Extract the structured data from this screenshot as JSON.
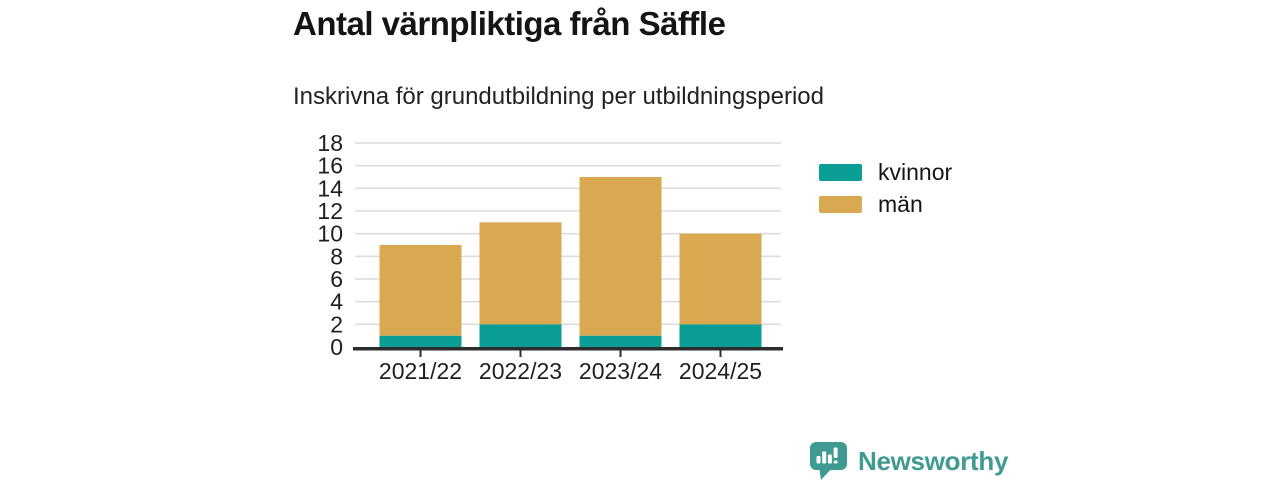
{
  "chart_data": {
    "type": "bar",
    "stacked": true,
    "title": "Antal värnpliktiga från Säffle",
    "subtitle": "Inskrivna för grundutbildning per utbildningsperiod",
    "categories": [
      "2021/22",
      "2022/23",
      "2023/24",
      "2024/25"
    ],
    "series": [
      {
        "name": "kvinnor",
        "color": "#0a9e96",
        "values": [
          1,
          2,
          1,
          2
        ]
      },
      {
        "name": "män",
        "color": "#d9a951",
        "values": [
          8,
          9,
          14,
          8
        ]
      }
    ],
    "totals": [
      9,
      11,
      15,
      10
    ],
    "xlabel": "",
    "ylabel": "",
    "ylim": [
      0,
      18
    ],
    "yticks": [
      0,
      2,
      4,
      6,
      8,
      10,
      12,
      14,
      16,
      18
    ],
    "grid": true,
    "legend_position": "right"
  },
  "footer": {
    "brand": "Newsworthy"
  },
  "colors": {
    "axis": "#2d2d2d",
    "grid": "#dcdcdc",
    "tick_text": "#1f1f1f",
    "brand": "#3f9b92",
    "background": "#ffffff"
  }
}
